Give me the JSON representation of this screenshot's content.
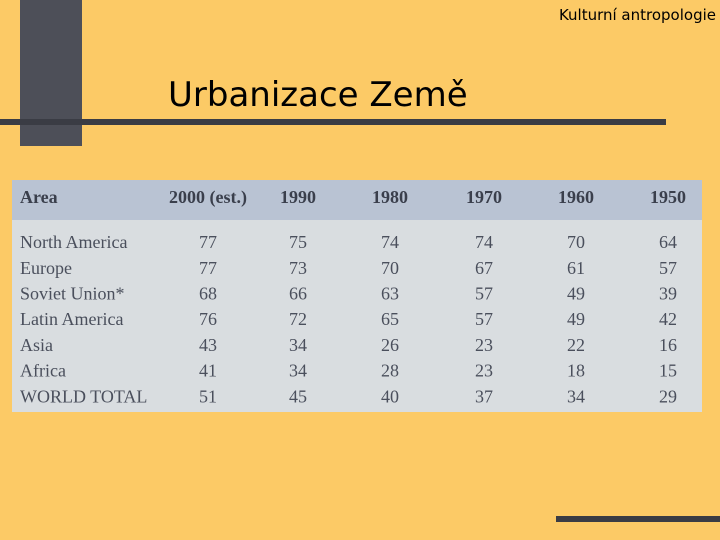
{
  "header": {
    "course": "Kulturní antropologie",
    "title": "Urbanizace Země"
  },
  "table": {
    "columns": [
      "Area",
      "2000 (est.)",
      "1990",
      "1980",
      "1970",
      "1960",
      "1950"
    ],
    "rows": [
      [
        "North America",
        77,
        75,
        74,
        74,
        70,
        64
      ],
      [
        "Europe",
        77,
        73,
        70,
        67,
        61,
        57
      ],
      [
        "Soviet Union*",
        68,
        66,
        63,
        57,
        49,
        39
      ],
      [
        "Latin America",
        76,
        72,
        65,
        57,
        49,
        42
      ],
      [
        "Asia",
        43,
        34,
        26,
        23,
        22,
        16
      ],
      [
        "Africa",
        41,
        34,
        28,
        23,
        18,
        15
      ],
      [
        "WORLD TOTAL",
        51,
        45,
        40,
        37,
        34,
        29
      ]
    ]
  }
}
